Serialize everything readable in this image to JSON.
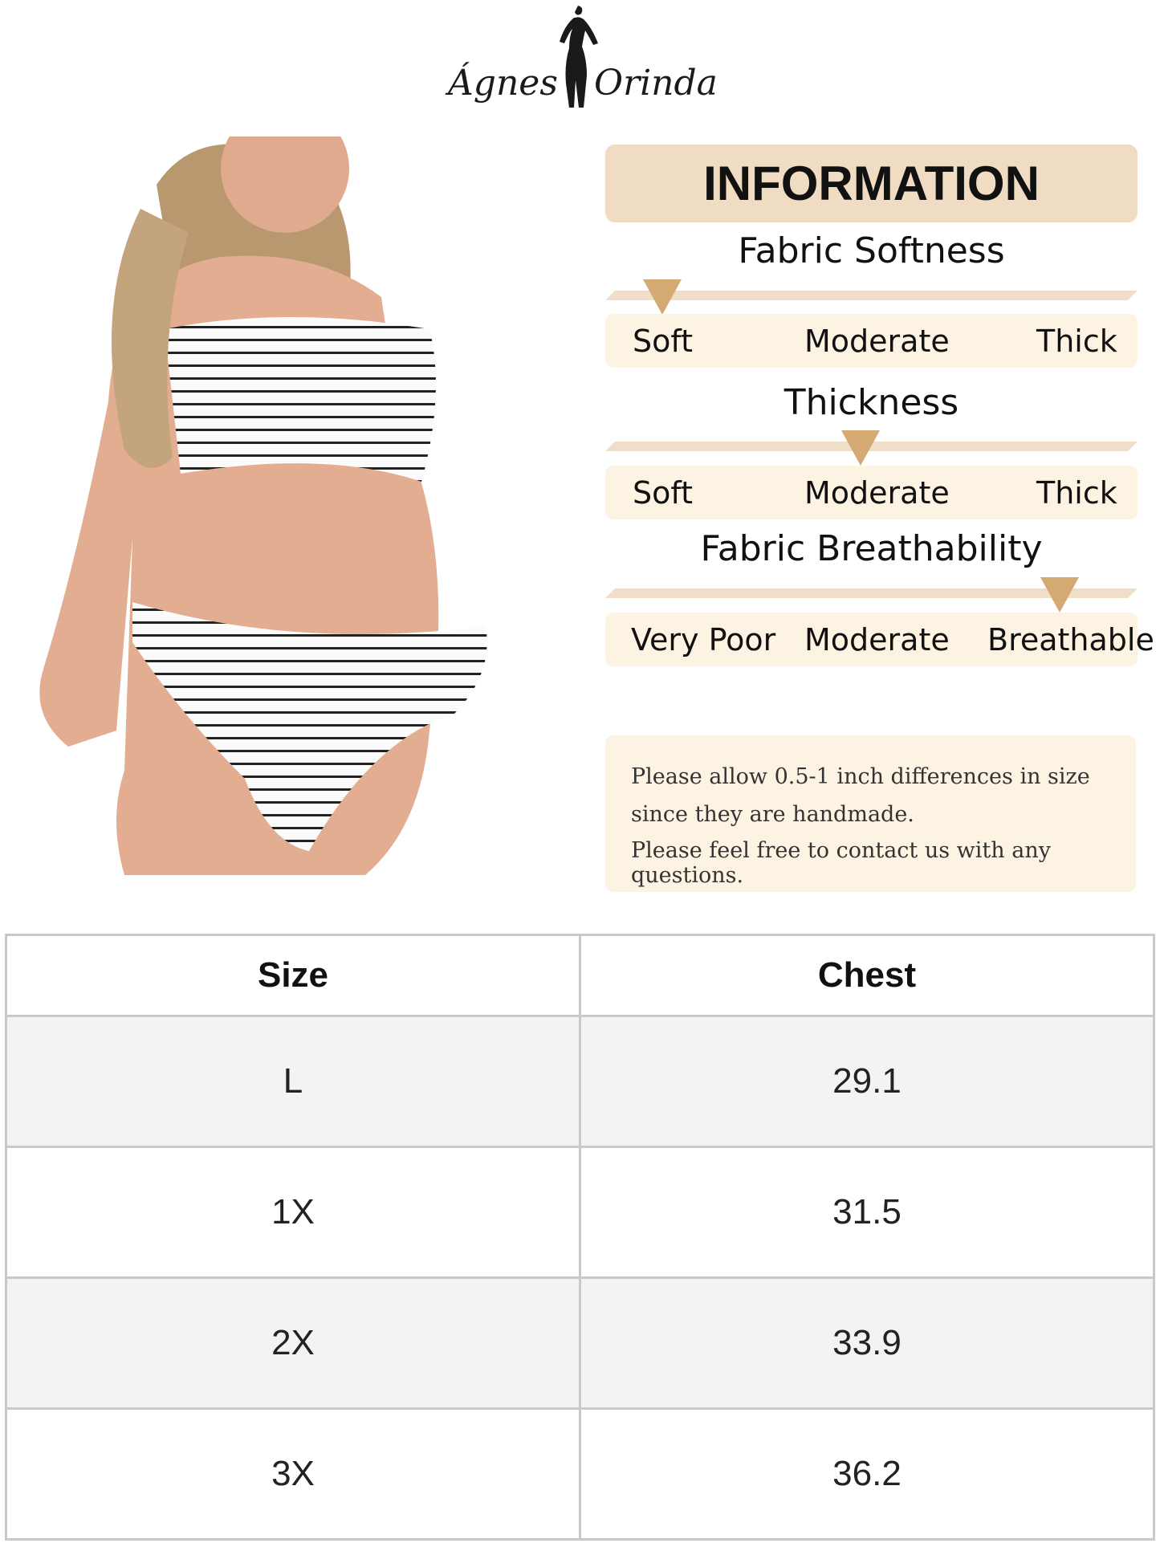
{
  "logo": {
    "text_left": "Ágnes",
    "text_right": "Orinda"
  },
  "info": {
    "title": "INFORMATION",
    "accent_color": "#d4aa74",
    "sections": [
      {
        "title": "Fabric Softness",
        "labels": [
          "Soft",
          "Moderate",
          "Thick"
        ],
        "level": 0.1
      },
      {
        "title": "Thickness",
        "labels": [
          "Soft",
          "Moderate",
          "Thick"
        ],
        "level": 0.48
      },
      {
        "title": "Fabric Breathability",
        "labels": [
          "Very Poor",
          "Moderate",
          "Breathable"
        ],
        "level": 0.86
      }
    ],
    "note": [
      "Please allow 0.5-1 inch differences in size",
      "since they are handmade.",
      "Please feel free to contact us with any questions."
    ]
  },
  "size_table": {
    "headers": [
      "Size",
      "Chest"
    ],
    "rows": [
      [
        "L",
        "29.1"
      ],
      [
        "1X",
        "31.5"
      ],
      [
        "2X",
        "33.9"
      ],
      [
        "3X",
        "36.2"
      ]
    ]
  }
}
